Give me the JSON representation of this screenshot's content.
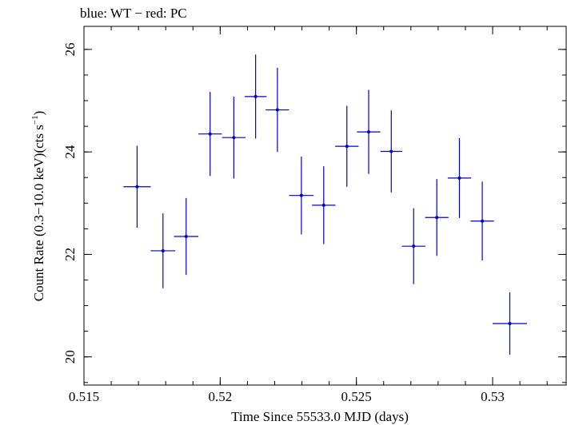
{
  "chart_data": {
    "type": "scatter",
    "title": "blue: WT − red: PC",
    "xlabel": "Time Since 55533.0 MJD (days)",
    "ylabel_main": "Count Rate (0.3−10.0 keV)(cts s",
    "ylabel_sup": "−1",
    "ylabel_close": ")",
    "xlim": [
      0.515,
      0.5327
    ],
    "ylim": [
      19.45,
      26.45
    ],
    "grid": false,
    "xticks": [
      {
        "value": 0.515,
        "label": "0.515"
      },
      {
        "value": 0.52,
        "label": "0.52"
      },
      {
        "value": 0.525,
        "label": "0.525"
      },
      {
        "value": 0.53,
        "label": "0.53"
      }
    ],
    "x_minor_step": 0.001,
    "yticks": [
      {
        "value": 20,
        "label": "20"
      },
      {
        "value": 22,
        "label": "22"
      },
      {
        "value": 24,
        "label": "24"
      },
      {
        "value": 26,
        "label": "26"
      }
    ],
    "y_minor_step": 0.5,
    "color": "#0000cc",
    "series": [
      {
        "points": [
          {
            "x": 0.51695,
            "xerr": 0.0005,
            "y": 23.32,
            "yerr": 0.8
          },
          {
            "x": 0.5179,
            "xerr": 0.00045,
            "y": 22.07,
            "yerr": 0.73
          },
          {
            "x": 0.51875,
            "xerr": 0.00045,
            "y": 22.35,
            "yerr": 0.75
          },
          {
            "x": 0.51963,
            "xerr": 0.00043,
            "y": 24.35,
            "yerr": 0.82
          },
          {
            "x": 0.5205,
            "xerr": 0.00043,
            "y": 24.28,
            "yerr": 0.8
          },
          {
            "x": 0.5213,
            "xerr": 0.0004,
            "y": 25.08,
            "yerr": 0.82
          },
          {
            "x": 0.5221,
            "xerr": 0.00043,
            "y": 24.82,
            "yerr": 0.82
          },
          {
            "x": 0.52298,
            "xerr": 0.00045,
            "y": 23.15,
            "yerr": 0.76
          },
          {
            "x": 0.5238,
            "xerr": 0.00043,
            "y": 22.96,
            "yerr": 0.76
          },
          {
            "x": 0.52465,
            "xerr": 0.00043,
            "y": 24.11,
            "yerr": 0.79
          },
          {
            "x": 0.52545,
            "xerr": 0.00043,
            "y": 24.39,
            "yerr": 0.82
          },
          {
            "x": 0.52628,
            "xerr": 0.0004,
            "y": 24.01,
            "yerr": 0.8
          },
          {
            "x": 0.5271,
            "xerr": 0.00043,
            "y": 22.16,
            "yerr": 0.74
          },
          {
            "x": 0.52795,
            "xerr": 0.00043,
            "y": 22.72,
            "yerr": 0.75
          },
          {
            "x": 0.52878,
            "xerr": 0.00043,
            "y": 23.49,
            "yerr": 0.78
          },
          {
            "x": 0.52962,
            "xerr": 0.00043,
            "y": 22.65,
            "yerr": 0.77
          },
          {
            "x": 0.53063,
            "xerr": 0.00063,
            "y": 20.65,
            "yerr": 0.61
          }
        ]
      }
    ]
  }
}
